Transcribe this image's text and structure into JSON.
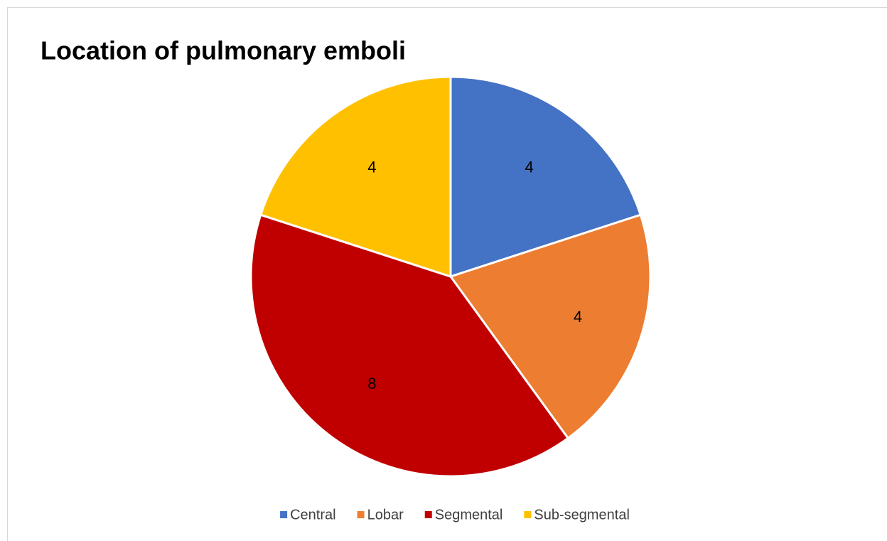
{
  "chart_data": {
    "type": "pie",
    "title": "Location of pulmonary emboli",
    "categories": [
      "Central",
      "Lobar",
      "Segmental",
      "Sub-segmental"
    ],
    "values": [
      4,
      4,
      8,
      4
    ],
    "colors": [
      "#4472c4",
      "#ed7d31",
      "#c00000",
      "#ffc000"
    ],
    "legend": "bottom"
  }
}
